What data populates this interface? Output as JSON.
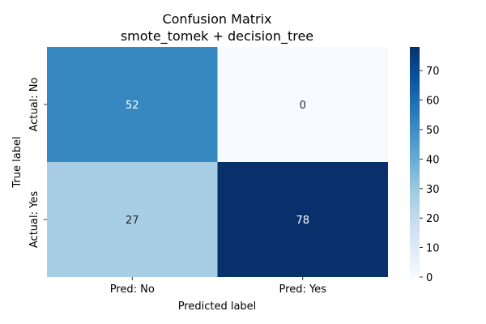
{
  "chart_data": {
    "type": "heatmap",
    "title": "Confusion Matrix",
    "subtitle": "smote_tomek + decision_tree",
    "xlabel": "Predicted label",
    "ylabel": "True label",
    "x_categories": [
      "Pred: No",
      "Pred: Yes"
    ],
    "y_categories": [
      "Actual: No",
      "Actual: Yes"
    ],
    "values": [
      [
        52,
        0
      ],
      [
        27,
        78
      ]
    ],
    "colormap": "Blues",
    "colorbar": {
      "range": [
        0,
        78
      ],
      "ticks": [
        0,
        10,
        20,
        30,
        40,
        50,
        60,
        70
      ]
    },
    "colors": {
      "low": "#f7fbff",
      "high": "#08306b"
    }
  }
}
